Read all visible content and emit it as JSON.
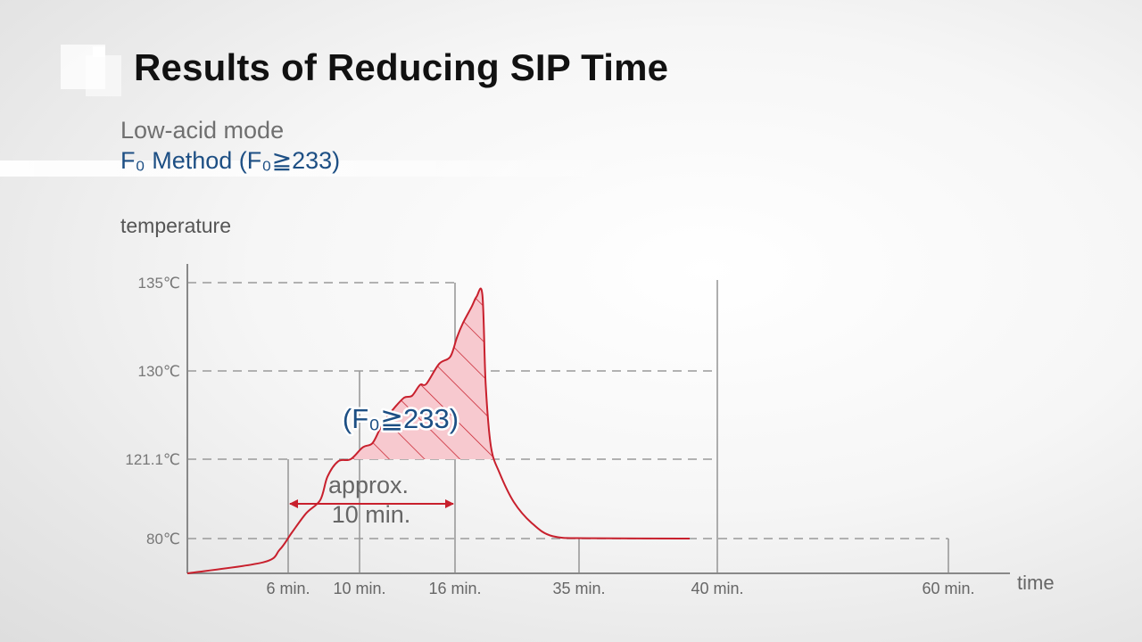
{
  "slide": {
    "title": "Results of Reducing SIP Time",
    "mode_label": "Low-acid mode",
    "method_label": "F₀ Method (F₀≧233)"
  },
  "colors": {
    "curve": "#c8202d",
    "fill": "#f7c9cf",
    "grid": "#9a9a9a",
    "axis": "#888888",
    "accent_text": "#1d4f84"
  },
  "chart_data": {
    "type": "line",
    "title": "",
    "ylabel": "temperature",
    "xlabel": "time",
    "y_ticks": [
      {
        "value": 80,
        "label": "80℃"
      },
      {
        "value": 121.1,
        "label": "121.1℃"
      },
      {
        "value": 130,
        "label": "130℃"
      },
      {
        "value": 135,
        "label": "135℃"
      }
    ],
    "x_ticks": [
      {
        "value": 6,
        "label": "6 min."
      },
      {
        "value": 10,
        "label": "10 min."
      },
      {
        "value": 16,
        "label": "16 min."
      },
      {
        "value": 35,
        "label": "35 min."
      },
      {
        "value": 40,
        "label": "40 min."
      },
      {
        "value": 60,
        "label": "60 min."
      }
    ],
    "series": [
      {
        "name": "Sterilization temperature",
        "points": [
          [
            0,
            61
          ],
          [
            4.5,
            67
          ],
          [
            5.5,
            74
          ],
          [
            6.2,
            83
          ],
          [
            7,
            93
          ],
          [
            7.8,
            100
          ],
          [
            8.2,
            112
          ],
          [
            8.8,
            120
          ],
          [
            9.5,
            121.1
          ],
          [
            10.2,
            122.3
          ],
          [
            10.8,
            122.7
          ],
          [
            11.3,
            124.2
          ],
          [
            11.8,
            125.5
          ],
          [
            12.2,
            126.3
          ],
          [
            12.8,
            127.3
          ],
          [
            13.3,
            127.5
          ],
          [
            13.8,
            128.6
          ],
          [
            14.2,
            128.7
          ],
          [
            15,
            130.4
          ],
          [
            15.7,
            130.8
          ],
          [
            16.3,
            131.9
          ],
          [
            17.2,
            132.7
          ],
          [
            18.5,
            133.6
          ],
          [
            19.3,
            134.2
          ],
          [
            20.2,
            134.3
          ],
          [
            20.7,
            128.6
          ],
          [
            21.5,
            122.4
          ],
          [
            22.8,
            114.2
          ],
          [
            25,
            99
          ],
          [
            27.7,
            88.2
          ],
          [
            31,
            81.2
          ],
          [
            35.5,
            80.2
          ],
          [
            39,
            80
          ]
        ]
      }
    ],
    "annotations": {
      "interval_text_line1": "approx.",
      "interval_text_line2": "10 min.",
      "interval_start_min": 6,
      "interval_end_min": 16,
      "interval_level_c": 98,
      "f0_area_label": "(F₀≧233)",
      "f0_area_threshold_c": 121.1
    }
  }
}
